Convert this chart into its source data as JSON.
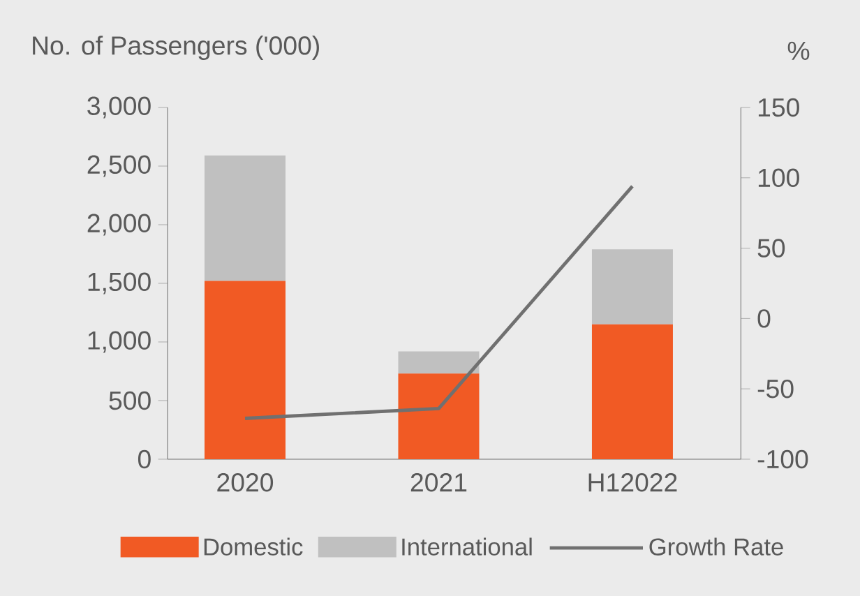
{
  "chart_data": {
    "type": "bar",
    "stacked": true,
    "ylabel": "No. of Passengers ('000)",
    "y2label": "%",
    "categories": [
      "2020",
      "2021",
      "H12022"
    ],
    "series": [
      {
        "name": "Domestic",
        "color": "#f15a24",
        "values": [
          1520,
          730,
          1150
        ]
      },
      {
        "name": "International",
        "color": "#c0c0c0",
        "values": [
          1070,
          190,
          640
        ]
      },
      {
        "name": "Growth Rate",
        "type": "line",
        "axis": "y2",
        "color": "#707070",
        "values": [
          -71,
          -64,
          94
        ]
      }
    ],
    "ylim": [
      0,
      3000
    ],
    "yticks": [
      0,
      500,
      {
        "value": 1000,
        "label": "1,000"
      },
      {
        "value": 1500,
        "label": "1,500"
      },
      {
        "value": 2000,
        "label": "2,000"
      },
      {
        "value": 2500,
        "label": "2,500"
      },
      {
        "value": 3000,
        "label": "3,000"
      }
    ],
    "y2lim": [
      -100,
      150
    ],
    "y2ticks": [
      -100,
      -50,
      0,
      50,
      100,
      150
    ],
    "legend": "bottom",
    "marker": "none",
    "line_style": "solid",
    "grid": false
  }
}
